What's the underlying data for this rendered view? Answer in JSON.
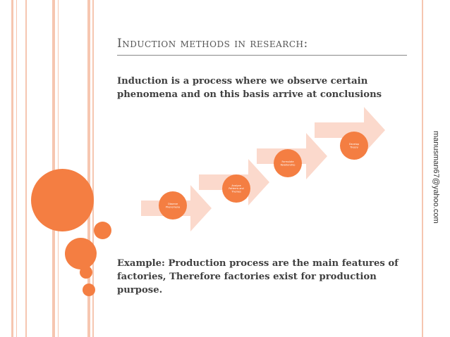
{
  "slide": {
    "title": "Induction methods in research:",
    "intro": "Induction is a process where we observe certain phenomena and on this basis arrive at conclusions",
    "example": "Example: Production process are the main features of factories, Therefore factories exist for production purpose.",
    "watermark": "manusman67@yahoo.com"
  },
  "diagram": {
    "steps": [
      {
        "lines": [
          "Observe",
          "Phenomena"
        ]
      },
      {
        "lines": [
          "Analyze",
          "Patterns and",
          "Themes"
        ]
      },
      {
        "lines": [
          "Formulate",
          "Relationship"
        ]
      },
      {
        "lines": [
          "Develop",
          "Theory"
        ]
      }
    ]
  },
  "colors": {
    "accent": "#f47e42",
    "arrow": "#fbd9cc",
    "line": "#f6c6b0"
  }
}
